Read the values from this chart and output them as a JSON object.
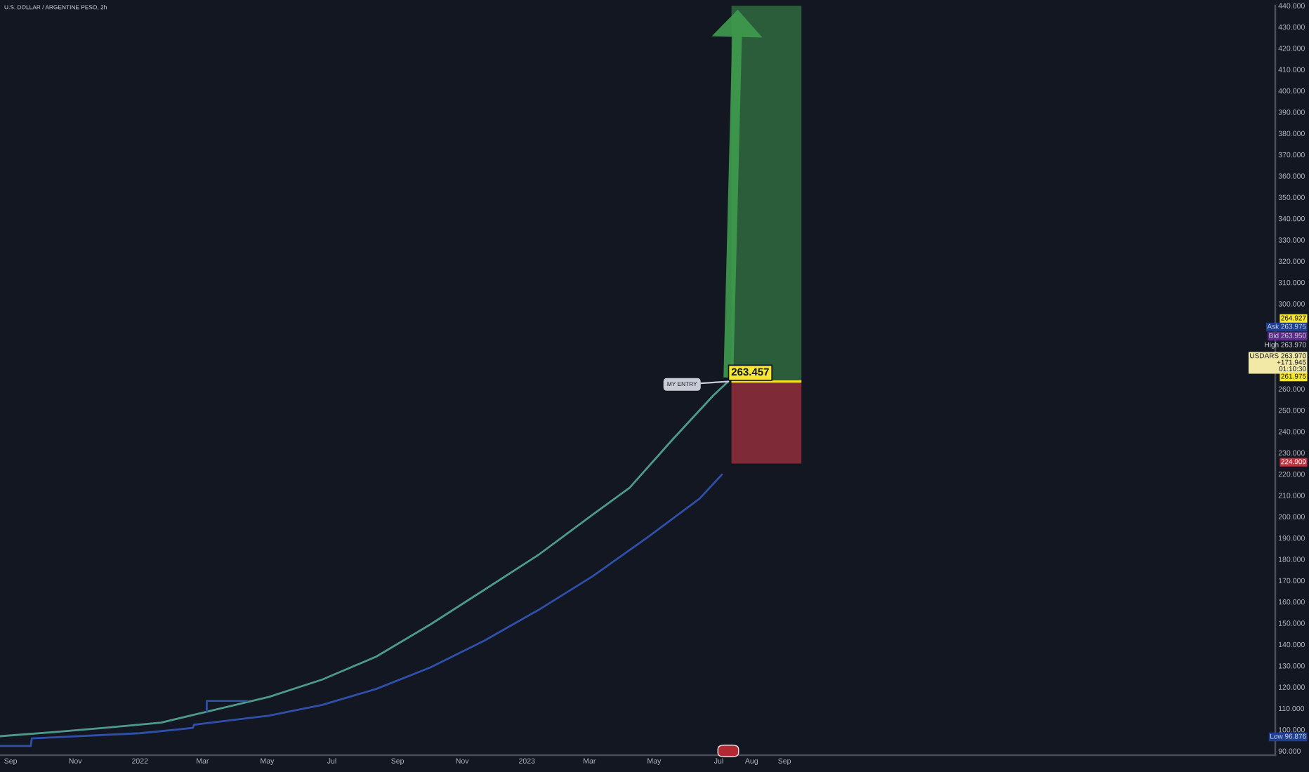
{
  "chart_data": {
    "type": "line",
    "title": "U.S. DOLLAR / ARGENTINE PESO, 2h",
    "xlim": [
      "2021-08-22",
      "2024-12-07"
    ],
    "xticks": [
      {
        "value": "2021-09-01",
        "label": "Sep"
      },
      {
        "value": "2021-11-01",
        "label": "Nov"
      },
      {
        "value": "2022-01-01",
        "label": "2022"
      },
      {
        "value": "2022-03-01",
        "label": "Mar"
      },
      {
        "value": "2022-05-01",
        "label": "May"
      },
      {
        "value": "2022-07-01",
        "label": "Jul"
      },
      {
        "value": "2022-09-01",
        "label": "Sep"
      },
      {
        "value": "2022-11-01",
        "label": "Nov"
      },
      {
        "value": "2023-01-01",
        "label": "2023"
      },
      {
        "value": "2023-03-01",
        "label": "Mar"
      },
      {
        "value": "2023-05-01",
        "label": "May"
      },
      {
        "value": "2023-07-01",
        "label": "Jul"
      },
      {
        "value": "2023-08-01",
        "label": "Aug"
      },
      {
        "value": "2023-09-01",
        "label": "Sep"
      }
    ],
    "ylim": [
      88,
      440
    ],
    "yticks": [
      {
        "value": 90,
        "label": "90.000"
      },
      {
        "value": 100,
        "label": "100.000"
      },
      {
        "value": 110,
        "label": "110.000"
      },
      {
        "value": 120,
        "label": "120.000"
      },
      {
        "value": 130,
        "label": "130.000"
      },
      {
        "value": 140,
        "label": "140.000"
      },
      {
        "value": 150,
        "label": "150.000"
      },
      {
        "value": 160,
        "label": "160.000"
      },
      {
        "value": 170,
        "label": "170.000"
      },
      {
        "value": 180,
        "label": "180.000"
      },
      {
        "value": 190,
        "label": "190.000"
      },
      {
        "value": 200,
        "label": "200.000"
      },
      {
        "value": 210,
        "label": "210.000"
      },
      {
        "value": 220,
        "label": "220.000"
      },
      {
        "value": 230,
        "label": "230.000"
      },
      {
        "value": 240,
        "label": "240.000"
      },
      {
        "value": 250,
        "label": "250.000"
      },
      {
        "value": 260,
        "label": "260.000"
      },
      {
        "value": 300,
        "label": "300.000"
      },
      {
        "value": 310,
        "label": "310.000"
      },
      {
        "value": 320,
        "label": "320.000"
      },
      {
        "value": 330,
        "label": "330.000"
      },
      {
        "value": 340,
        "label": "340.000"
      },
      {
        "value": 350,
        "label": "350.000"
      },
      {
        "value": 360,
        "label": "360.000"
      },
      {
        "value": 370,
        "label": "370.000"
      },
      {
        "value": 380,
        "label": "380.000"
      },
      {
        "value": 390,
        "label": "390.000"
      },
      {
        "value": 400,
        "label": "400.000"
      },
      {
        "value": 410,
        "label": "410.000"
      },
      {
        "value": 420,
        "label": "420.000"
      },
      {
        "value": 430,
        "label": "430.000"
      },
      {
        "value": 440,
        "label": "440.000"
      }
    ],
    "series": [
      {
        "color": "#4e9a8a",
        "x": [
          "2021-08-22",
          "2021-10-12",
          "2021-12-02",
          "2022-01-21",
          "2022-03-05",
          "2022-05-03",
          "2022-06-22",
          "2022-08-12",
          "2022-10-02",
          "2022-11-22",
          "2023-01-12",
          "2023-03-04",
          "2023-04-08",
          "2023-05-18",
          "2023-06-13",
          "2023-06-26",
          "2023-07-10"
        ],
        "values": [
          96.9,
          98.8,
          101.0,
          103.3,
          108.4,
          115.4,
          123.5,
          134.3,
          149.4,
          165.7,
          182.1,
          200.9,
          213.6,
          236.0,
          250.0,
          257.0,
          263.5
        ]
      },
      {
        "color": "#2f4fa8",
        "x": [
          "2021-08-22",
          "2021-09-20",
          "2021-09-21",
          "2022-01-01",
          "2022-02-20",
          "2022-02-21",
          "2022-05-03",
          "2022-06-22",
          "2022-08-12",
          "2022-10-02",
          "2022-11-22",
          "2023-01-12",
          "2023-03-04",
          "2023-04-23",
          "2023-06-13",
          "2023-07-04"
        ],
        "values": [
          92.3,
          92.3,
          95.9,
          98.3,
          100.8,
          102.3,
          106.6,
          111.6,
          119.1,
          129.2,
          141.8,
          156.2,
          172.0,
          189.6,
          208.5,
          219.8
        ]
      },
      {
        "color": "#2f4fa8",
        "x": [
          "2022-03-05T00:00",
          "2022-03-05T02:00",
          "2022-04-12"
        ],
        "values": [
          108.4,
          113.5,
          113.5
        ]
      },
      {
        "type": "bar",
        "x": [
          "2023-08-15",
          "2023-08-15"
        ],
        "base": [
          263.457,
          224.909
        ],
        "values": [
          176.5,
          38.5
        ],
        "colors": [
          "#2b5d3b",
          "#7e2b37"
        ]
      }
    ],
    "annotations": [
      {
        "text": "263.457",
        "x": "2023-07-10",
        "y": 263.457
      },
      {
        "text": "MY ENTRY",
        "x": "2023-07-10",
        "y": 263.457
      },
      "264.927",
      "Ask 263.975",
      "Bid 263.950",
      "High 263.970",
      "USDARS 263.970\n+171.945\n01:10:30",
      "261.975",
      "224.909",
      "Low 96.876"
    ]
  }
}
